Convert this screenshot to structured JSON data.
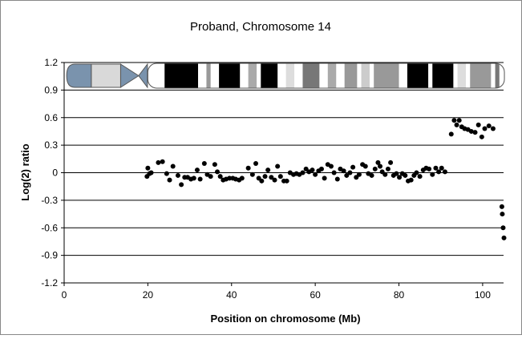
{
  "chart_data": {
    "type": "scatter",
    "title": "Proband, Chromosome 14",
    "xlabel": "Position on chromosome (Mb)",
    "ylabel": "Log(2) ratio",
    "xlim": [
      0,
      105
    ],
    "ylim": [
      -1.2,
      1.2
    ],
    "xticks": [
      0,
      20,
      40,
      60,
      80,
      100
    ],
    "yticks": [
      -1.2,
      -0.9,
      -0.6,
      -0.3,
      0,
      0.3,
      0.6,
      0.9,
      1.2
    ],
    "ytick_labels": [
      "-1.2",
      "-0.9",
      "-0.6",
      "-0.3",
      "0",
      "0.3",
      "0.6",
      "0.9",
      "1.2"
    ],
    "grid": "horizontal",
    "legend": "none",
    "marker_color": "#000000",
    "ideogram": {
      "p_arm_colors": [
        "#7a93ad",
        "#d9d9d9",
        "#7a93ad"
      ],
      "bands": [
        {
          "start": 24,
          "end": 32,
          "color": "#000000"
        },
        {
          "start": 34,
          "end": 35,
          "color": "#999999"
        },
        {
          "start": 37,
          "end": 42,
          "color": "#000000"
        },
        {
          "start": 44,
          "end": 46,
          "color": "#aaaaaa"
        },
        {
          "start": 47,
          "end": 51,
          "color": "#000000"
        },
        {
          "start": 53,
          "end": 55,
          "color": "#dddddd"
        },
        {
          "start": 57,
          "end": 61,
          "color": "#777777"
        },
        {
          "start": 63,
          "end": 65,
          "color": "#aaaaaa"
        },
        {
          "start": 67,
          "end": 70,
          "color": "#999999"
        },
        {
          "start": 71,
          "end": 73,
          "color": "#cccccc"
        },
        {
          "start": 74,
          "end": 80,
          "color": "#999999"
        },
        {
          "start": 82,
          "end": 87,
          "color": "#000000"
        },
        {
          "start": 88,
          "end": 93,
          "color": "#000000"
        },
        {
          "start": 94,
          "end": 96,
          "color": "#dddddd"
        },
        {
          "start": 97,
          "end": 102,
          "color": "#999999"
        },
        {
          "start": 103,
          "end": 104,
          "color": "#777777"
        }
      ]
    },
    "points": [
      [
        19.8,
        -0.04
      ],
      [
        20.0,
        0.05
      ],
      [
        20.4,
        -0.01
      ],
      [
        20.8,
        0.0
      ],
      [
        22.5,
        0.11
      ],
      [
        23.5,
        0.12
      ],
      [
        24.5,
        -0.01
      ],
      [
        25.2,
        -0.08
      ],
      [
        26.0,
        0.07
      ],
      [
        27.2,
        -0.03
      ],
      [
        28.0,
        -0.13
      ],
      [
        28.8,
        -0.05
      ],
      [
        29.5,
        -0.05
      ],
      [
        30.3,
        -0.07
      ],
      [
        31.0,
        -0.06
      ],
      [
        31.8,
        0.03
      ],
      [
        32.5,
        -0.07
      ],
      [
        33.5,
        0.1
      ],
      [
        34.2,
        -0.02
      ],
      [
        35.0,
        -0.04
      ],
      [
        36.0,
        0.09
      ],
      [
        36.6,
        0.01
      ],
      [
        37.3,
        -0.04
      ],
      [
        38.0,
        -0.08
      ],
      [
        38.7,
        -0.07
      ],
      [
        39.5,
        -0.06
      ],
      [
        40.3,
        -0.06
      ],
      [
        41.0,
        -0.07
      ],
      [
        41.8,
        -0.08
      ],
      [
        42.5,
        -0.06
      ],
      [
        44.0,
        0.05
      ],
      [
        45.0,
        -0.02
      ],
      [
        45.8,
        0.1
      ],
      [
        46.5,
        -0.06
      ],
      [
        47.2,
        -0.09
      ],
      [
        48.0,
        -0.04
      ],
      [
        48.7,
        0.03
      ],
      [
        49.5,
        -0.05
      ],
      [
        50.3,
        -0.08
      ],
      [
        51.0,
        0.07
      ],
      [
        51.7,
        -0.04
      ],
      [
        52.5,
        -0.09
      ],
      [
        53.2,
        -0.09
      ],
      [
        54.0,
        0.0
      ],
      [
        54.8,
        -0.02
      ],
      [
        55.5,
        -0.01
      ],
      [
        56.2,
        -0.02
      ],
      [
        57.0,
        0.0
      ],
      [
        57.8,
        0.04
      ],
      [
        58.5,
        0.01
      ],
      [
        59.3,
        0.03
      ],
      [
        60.0,
        -0.02
      ],
      [
        60.8,
        0.02
      ],
      [
        61.5,
        0.04
      ],
      [
        62.2,
        -0.06
      ],
      [
        63.0,
        0.09
      ],
      [
        63.8,
        0.07
      ],
      [
        64.5,
        0.0
      ],
      [
        65.3,
        -0.07
      ],
      [
        66.0,
        0.04
      ],
      [
        66.8,
        0.02
      ],
      [
        67.5,
        -0.03
      ],
      [
        68.3,
        0.0
      ],
      [
        69.0,
        0.06
      ],
      [
        69.8,
        -0.05
      ],
      [
        70.5,
        -0.02
      ],
      [
        71.3,
        0.09
      ],
      [
        72.0,
        0.07
      ],
      [
        72.7,
        -0.01
      ],
      [
        73.5,
        -0.03
      ],
      [
        74.3,
        0.04
      ],
      [
        75.0,
        0.11
      ],
      [
        75.5,
        0.07
      ],
      [
        76.0,
        0.01
      ],
      [
        76.7,
        -0.02
      ],
      [
        77.4,
        0.04
      ],
      [
        78.0,
        0.11
      ],
      [
        78.7,
        -0.03
      ],
      [
        79.4,
        -0.01
      ],
      [
        80.1,
        -0.05
      ],
      [
        80.8,
        -0.01
      ],
      [
        81.5,
        -0.03
      ],
      [
        82.2,
        -0.09
      ],
      [
        82.9,
        -0.08
      ],
      [
        83.6,
        -0.03
      ],
      [
        84.2,
        0.0
      ],
      [
        85.0,
        -0.04
      ],
      [
        85.8,
        0.03
      ],
      [
        86.5,
        0.05
      ],
      [
        87.2,
        0.04
      ],
      [
        88.0,
        -0.02
      ],
      [
        88.8,
        0.05
      ],
      [
        89.5,
        0.01
      ],
      [
        90.2,
        0.05
      ],
      [
        91.0,
        0.01
      ],
      [
        92.5,
        0.42
      ],
      [
        93.2,
        0.57
      ],
      [
        93.8,
        0.52
      ],
      [
        94.4,
        0.57
      ],
      [
        95.0,
        0.5
      ],
      [
        95.7,
        0.48
      ],
      [
        96.5,
        0.47
      ],
      [
        97.3,
        0.45
      ],
      [
        98.2,
        0.44
      ],
      [
        99.0,
        0.52
      ],
      [
        99.8,
        0.39
      ],
      [
        100.5,
        0.48
      ],
      [
        101.5,
        0.51
      ],
      [
        102.5,
        0.48
      ],
      [
        104.6,
        -0.37
      ],
      [
        104.7,
        -0.45
      ],
      [
        104.9,
        -0.6
      ],
      [
        105.1,
        -0.71
      ]
    ]
  }
}
